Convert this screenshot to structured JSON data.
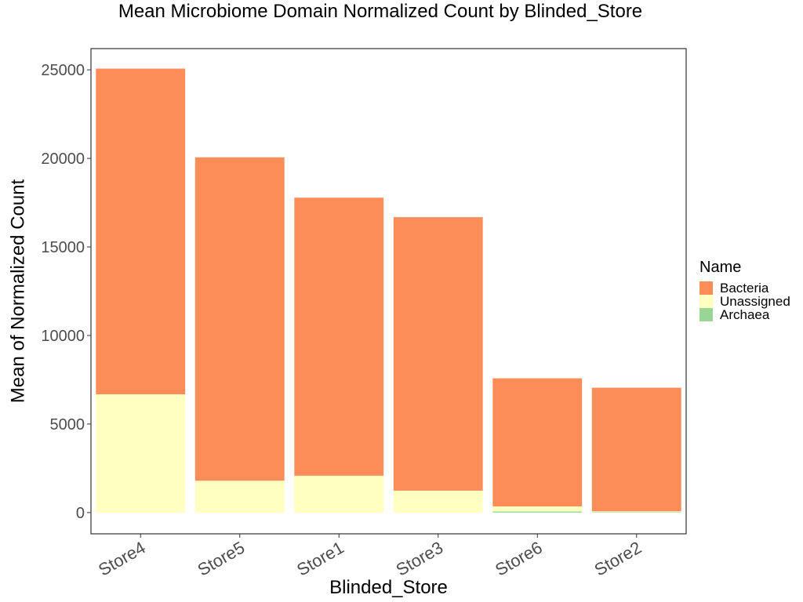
{
  "chart_data": {
    "type": "bar",
    "stacked": true,
    "title": "Mean Microbiome Domain Normalized Count by Blinded_Store",
    "xlabel": "Blinded_Store",
    "ylabel": "Mean of Normalized Count",
    "categories": [
      "Store4",
      "Store5",
      "Store1",
      "Store3",
      "Store6",
      "Store2"
    ],
    "series": [
      {
        "name": "Archaea",
        "color": "#99d594",
        "values": [
          0,
          0,
          0,
          0,
          60,
          30
        ]
      },
      {
        "name": "Unassigned",
        "color": "#ffffbf",
        "values": [
          6680,
          1800,
          2080,
          1240,
          290,
          40
        ]
      },
      {
        "name": "Bacteria",
        "color": "#fc8d59",
        "values": [
          18390,
          18260,
          15700,
          15440,
          7230,
          6980
        ]
      }
    ],
    "ylim": [
      -1200,
      26200
    ],
    "yticks": [
      0,
      5000,
      10000,
      15000,
      20000,
      25000
    ],
    "grid": false,
    "legend": {
      "title": "Name",
      "placement": "right",
      "entries": [
        {
          "label": "Bacteria",
          "color": "#fc8d59"
        },
        {
          "label": "Unassigned",
          "color": "#ffffbf"
        },
        {
          "label": "Archaea",
          "color": "#99d594"
        }
      ]
    }
  }
}
